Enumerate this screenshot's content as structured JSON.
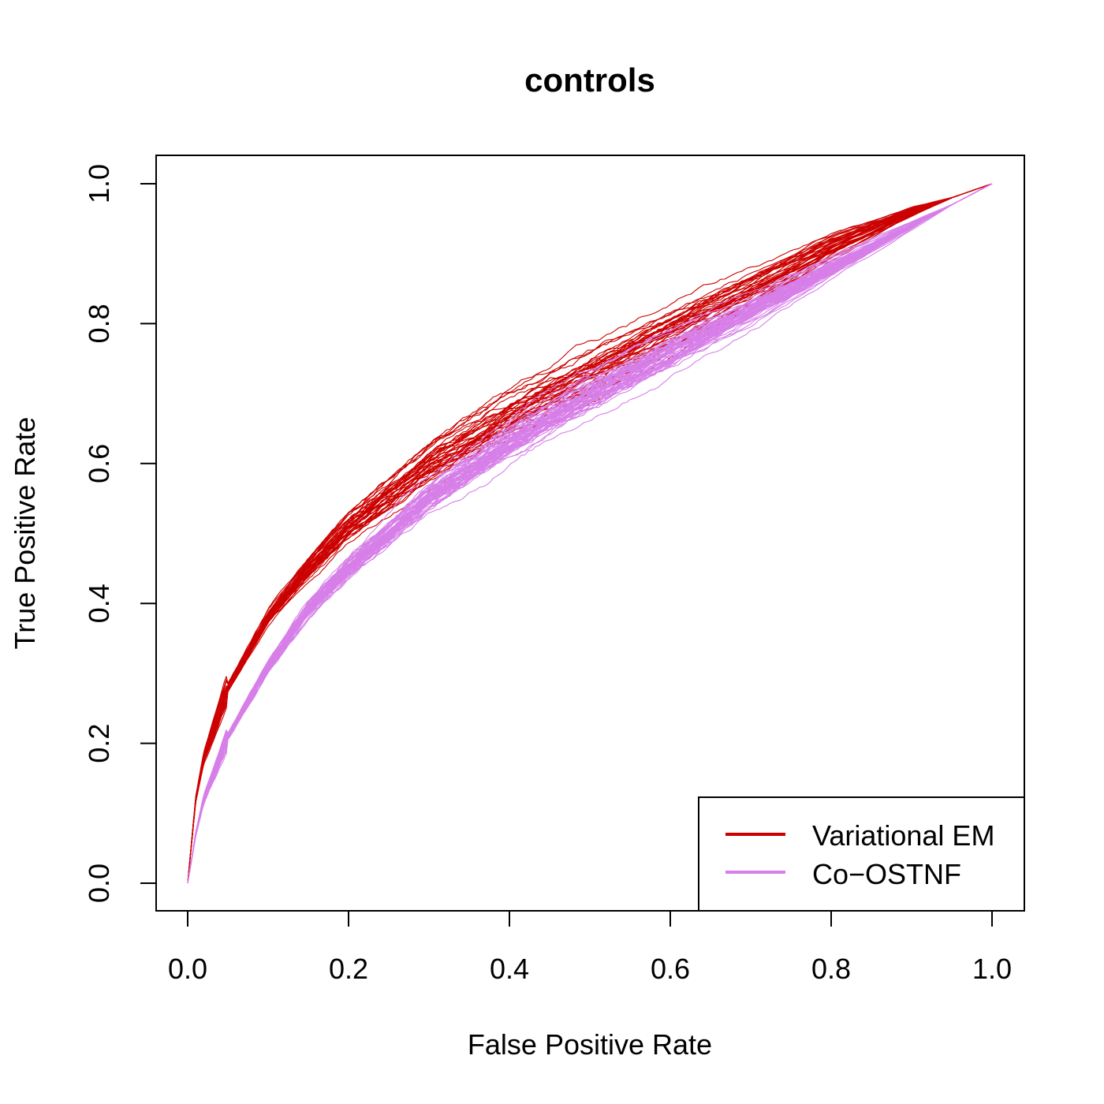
{
  "chart_data": {
    "type": "line",
    "title": "controls",
    "xlabel": "False Positive Rate",
    "ylabel": "True Positive Rate",
    "xlim": [
      0.0,
      1.0
    ],
    "ylim": [
      0.0,
      1.0
    ],
    "xticks": [
      "0.0",
      "0.2",
      "0.4",
      "0.6",
      "0.8",
      "1.0"
    ],
    "yticks": [
      "0.0",
      "0.2",
      "0.4",
      "0.6",
      "0.8",
      "1.0"
    ],
    "grid": false,
    "legend_position": "bottom-right",
    "legend": [
      {
        "label": "Variational EM",
        "color": "#cc0000"
      },
      {
        "label": "Co−OSTNF",
        "color": "#d77fe8"
      }
    ],
    "series": [
      {
        "name": "Variational EM",
        "color": "#cc0000",
        "replicates": 40,
        "mean_curve": {
          "x": [
            0.0,
            0.01,
            0.02,
            0.05,
            0.1,
            0.15,
            0.2,
            0.3,
            0.4,
            0.5,
            0.6,
            0.7,
            0.8,
            0.9,
            1.0
          ],
          "y": [
            0.0,
            0.12,
            0.18,
            0.28,
            0.38,
            0.45,
            0.51,
            0.6,
            0.67,
            0.73,
            0.79,
            0.85,
            0.91,
            0.96,
            1.0
          ]
        },
        "spread_tpr": 0.022
      },
      {
        "name": "Co−OSTNF",
        "color": "#d77fe8",
        "replicates": 60,
        "mean_curve": {
          "x": [
            0.0,
            0.01,
            0.02,
            0.05,
            0.1,
            0.15,
            0.2,
            0.3,
            0.4,
            0.5,
            0.6,
            0.7,
            0.8,
            0.9,
            1.0
          ],
          "y": [
            0.0,
            0.07,
            0.12,
            0.21,
            0.31,
            0.39,
            0.45,
            0.55,
            0.63,
            0.7,
            0.76,
            0.82,
            0.88,
            0.94,
            1.0
          ]
        },
        "spread_tpr": 0.016
      }
    ]
  }
}
